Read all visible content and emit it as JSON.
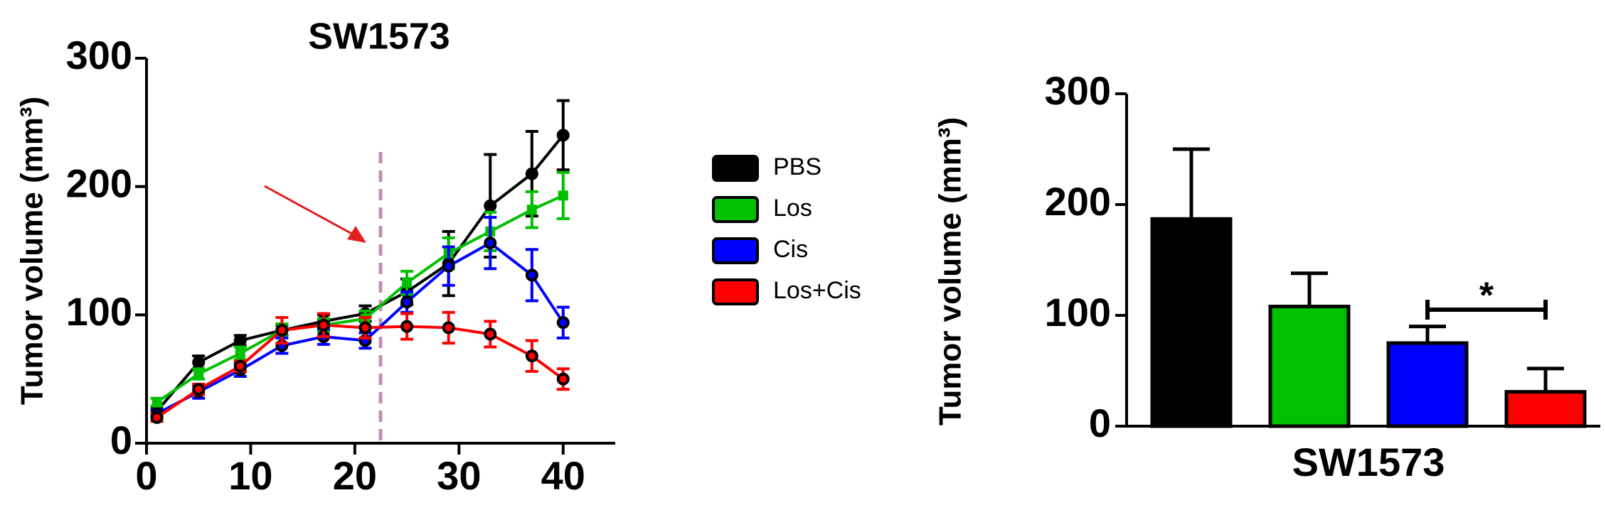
{
  "chart_data": [
    {
      "type": "line",
      "title": "SW1573",
      "y_label": "Tumor volume (mm³)",
      "x": [
        1,
        5,
        9,
        13,
        17,
        21,
        25,
        29,
        33,
        37,
        40
      ],
      "xlim": [
        0,
        45
      ],
      "xticks": [
        0,
        10,
        20,
        30,
        40
      ],
      "ylim": [
        0,
        300
      ],
      "yticks": [
        0,
        100,
        200,
        300
      ],
      "legend": "right",
      "series": [
        {
          "name": "PBS",
          "color": "#000000",
          "values": [
            25,
            63,
            80,
            88,
            95,
            101,
            118,
            140,
            185,
            210,
            240
          ],
          "errors": [
            3,
            5,
            4,
            4,
            5,
            6,
            10,
            25,
            40,
            33,
            27
          ]
        },
        {
          "name": "Los",
          "color": "#00c000",
          "values": [
            32,
            54,
            70,
            88,
            92,
            97,
            125,
            148,
            165,
            182,
            193
          ],
          "errors": [
            3,
            4,
            5,
            5,
            5,
            6,
            9,
            12,
            15,
            14,
            18
          ]
        },
        {
          "name": "Cis",
          "color": "#0000ff",
          "values": [
            23,
            40,
            57,
            76,
            83,
            80,
            110,
            138,
            156,
            131,
            94
          ],
          "errors": [
            3,
            5,
            5,
            6,
            6,
            6,
            8,
            15,
            20,
            20,
            12
          ]
        },
        {
          "name": "Los+Cis",
          "color": "#ff0000",
          "values": [
            20,
            42,
            60,
            88,
            92,
            90,
            91,
            90,
            85,
            68,
            50
          ],
          "errors": [
            3,
            4,
            4,
            10,
            9,
            8,
            10,
            12,
            10,
            12,
            8
          ]
        }
      ]
    },
    {
      "type": "bar",
      "y_label": "Tumor volume (mm³)",
      "categories": [
        "SW1573"
      ],
      "ylim": [
        0,
        300
      ],
      "yticks": [
        0,
        100,
        200,
        300
      ],
      "annotation": "*",
      "series": [
        {
          "color": "#000000",
          "values": [
            187
          ],
          "errors": [
            63
          ]
        },
        {
          "color": "#00c000",
          "values": [
            108
          ],
          "errors": [
            30
          ]
        },
        {
          "color": "#0000ff",
          "values": [
            75
          ],
          "errors": [
            15
          ]
        },
        {
          "color": "#ff0000",
          "values": [
            31
          ],
          "errors": [
            21
          ]
        }
      ]
    }
  ]
}
